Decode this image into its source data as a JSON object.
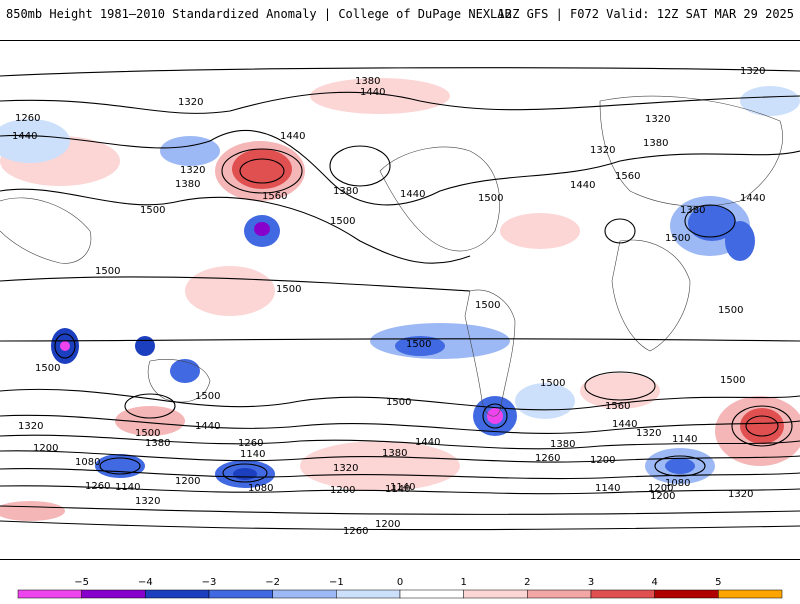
{
  "header": {
    "left_title": "850mb Height 1981–2010 Standardized Anomaly | College of DuPage NEXLAB",
    "right_title": "12Z GFS | F072 Valid: 12Z SAT MAR 29 2025"
  },
  "contour_labels": [
    "1380",
    "1440",
    "1320",
    "1320",
    "1260",
    "1440",
    "1560",
    "1320",
    "1380",
    "1380",
    "1500",
    "1440",
    "1500",
    "1440",
    "1320",
    "1380",
    "1440",
    "1560",
    "1380",
    "1440",
    "1320",
    "1500",
    "1500",
    "1500",
    "1500",
    "1500",
    "1500",
    "1500",
    "1500",
    "1500",
    "1560",
    "1500",
    "1500",
    "1440",
    "1380",
    "1320",
    "1260",
    "1200",
    "1080",
    "1140",
    "1320",
    "1200",
    "1140",
    "1080",
    "1260",
    "1200",
    "1140",
    "1080",
    "1200",
    "1440",
    "1380",
    "1320",
    "1260",
    "1200",
    "1140",
    "1140",
    "1380",
    "1440",
    "1320",
    "1500",
    "1500",
    "1320",
    "1200",
    "1140",
    "1260",
    "1200"
  ],
  "colorbar": {
    "ticks": [
      "−5",
      "−4",
      "−3",
      "−2",
      "−1",
      "0",
      "1",
      "2",
      "3",
      "4",
      "5"
    ],
    "colors": [
      "#ee44ee",
      "#8800cc",
      "#1c3fc0",
      "#4169e1",
      "#9db9f5",
      "#cde0fb",
      "#ffffff",
      "#fcd5d5",
      "#f2a6a6",
      "#e05050",
      "#b00000",
      "#ffa500"
    ]
  }
}
